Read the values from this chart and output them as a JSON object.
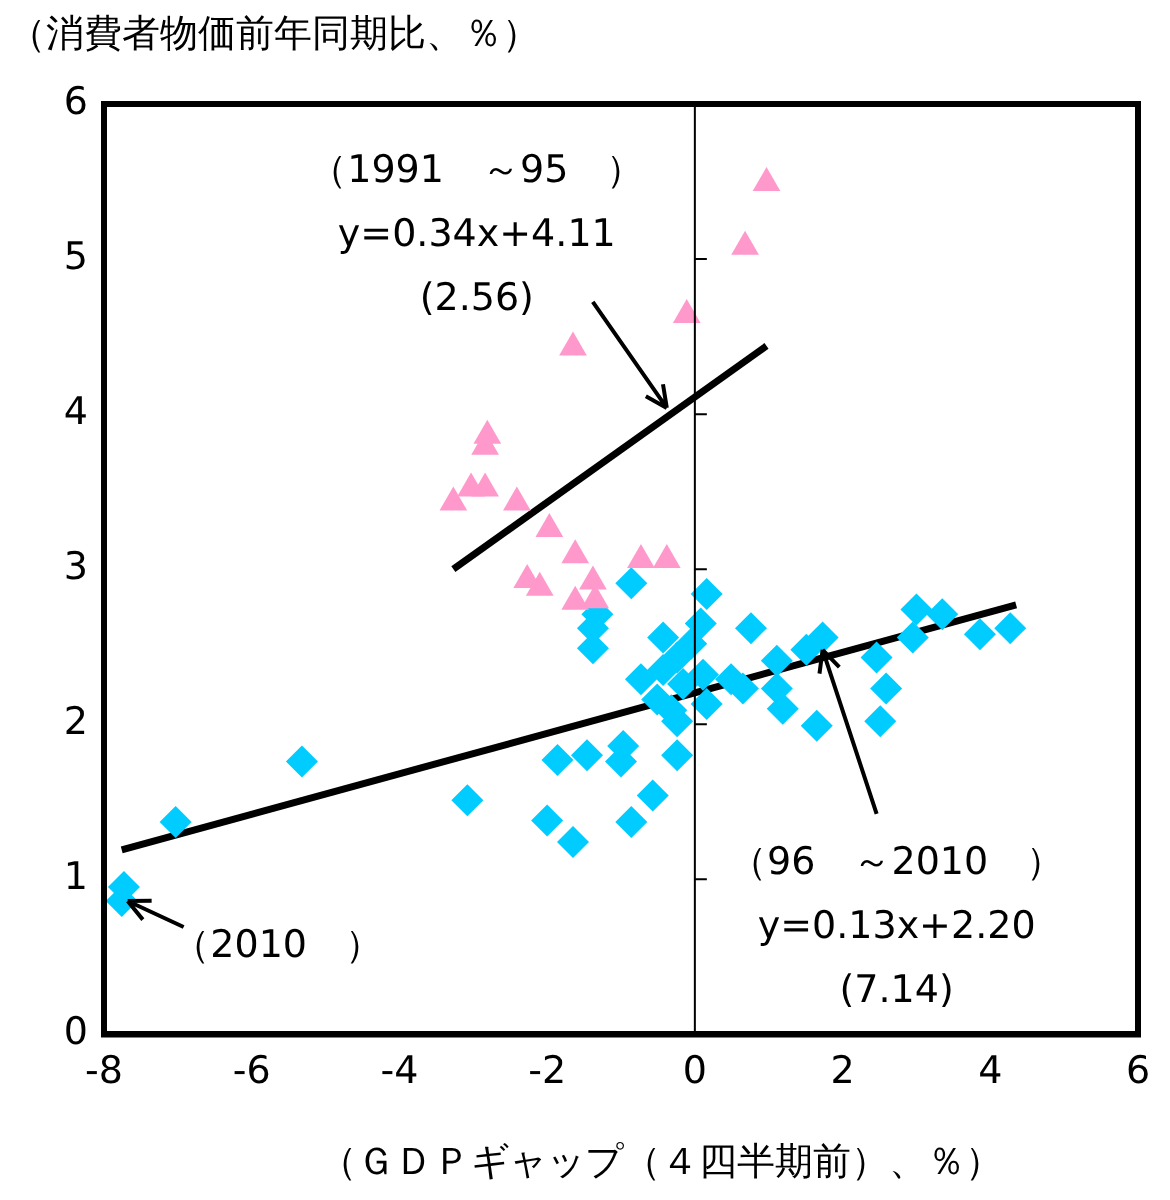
{
  "chart_data": {
    "type": "scatter",
    "ylabel": "（消費者物価前年同期比、％）",
    "xlabel": "（ＧＤＰギャップ（４四半期前）、％）",
    "xlim": [
      -8,
      6
    ],
    "xticks": [
      -8,
      -6,
      -4,
      -2,
      0,
      2,
      4,
      6
    ],
    "ylim": [
      0,
      6
    ],
    "yticks": [
      0,
      1,
      2,
      3,
      4,
      5,
      6
    ],
    "grid": false,
    "legend": false,
    "series": [
      {
        "color": "#ff99cc",
        "marker": "triangle",
        "x": [
          0.97,
          0.68,
          -0.11,
          -1.65,
          -2.81,
          -2.84,
          -3.27,
          -3.03,
          -2.84,
          -2.41,
          -1.97,
          -1.62,
          -2.27,
          -2.1,
          -1.38,
          -1.62,
          -0.73,
          -0.38,
          -1.35
        ],
        "values": [
          5.49,
          5.08,
          4.64,
          4.43,
          3.86,
          3.79,
          3.43,
          3.52,
          3.52,
          3.43,
          3.26,
          3.09,
          2.93,
          2.88,
          2.92,
          2.79,
          3.06,
          3.06,
          2.8
        ]
      },
      {
        "color": "#00ccff",
        "marker": "diamond",
        "x": [
          -0.86,
          0.16,
          -1.32,
          -1.38,
          -1.38,
          0.08,
          0.76,
          -0.43,
          -0.05,
          -0.24,
          -0.59,
          -0.73,
          -0.43,
          -0.16,
          0.11,
          -0.51,
          -0.32,
          -0.24,
          0.16,
          0.49,
          0.65,
          1.11,
          1.11,
          1.19,
          1.51,
          1.73,
          1.65,
          2.46,
          2.59,
          2.51,
          3.0,
          2.95,
          3.35,
          3.86,
          4.27,
          -1.86,
          -1.46,
          -0.97,
          -1.0,
          -0.24,
          -0.57,
          -2.0,
          -1.65,
          -0.86,
          -3.08,
          -5.32,
          -7.03,
          -7.73,
          -7.76
        ],
        "values": [
          2.91,
          2.84,
          2.71,
          2.62,
          2.49,
          2.65,
          2.62,
          2.56,
          2.52,
          2.43,
          null,
          2.29,
          2.35,
          2.26,
          2.32,
          2.16,
          2.09,
          2.02,
          2.13,
          2.29,
          2.23,
          2.41,
          2.23,
          2.1,
          2.48,
          2.56,
          1.99,
          2.43,
          2.23,
          2.02,
          2.74,
          2.56,
          2.71,
          2.58,
          2.62,
          1.77,
          1.8,
          1.86,
          1.76,
          1.8,
          1.54,
          1.38,
          1.24,
          1.37,
          1.51,
          1.76,
          1.37,
          0.95,
          0.86
        ]
      },
      {
        "type": "line",
        "color": "#000000",
        "marker": "none",
        "x": [
          -3.27,
          0.97
        ],
        "values": [
          3.0,
          4.44
        ]
      },
      {
        "type": "line",
        "color": "#000000",
        "marker": "none",
        "x": [
          -7.76,
          4.35
        ],
        "values": [
          1.19,
          2.77
        ]
      }
    ],
    "ref_lines": [
      {
        "axis": "x",
        "value": 0,
        "color": "#000000"
      }
    ],
    "annotations": [
      {
        "text": "（1991　～95　）\ny=0.34x+4.11\n(2.56)",
        "x": -0.38,
        "y": 4.04
      },
      {
        "text": "（96　～2010　）\ny=0.13x+2.20\n(7.14)",
        "x": 1.73,
        "y": 2.48
      },
      {
        "text": "（2010　）",
        "x": -7.68,
        "y": 0.86
      }
    ]
  }
}
